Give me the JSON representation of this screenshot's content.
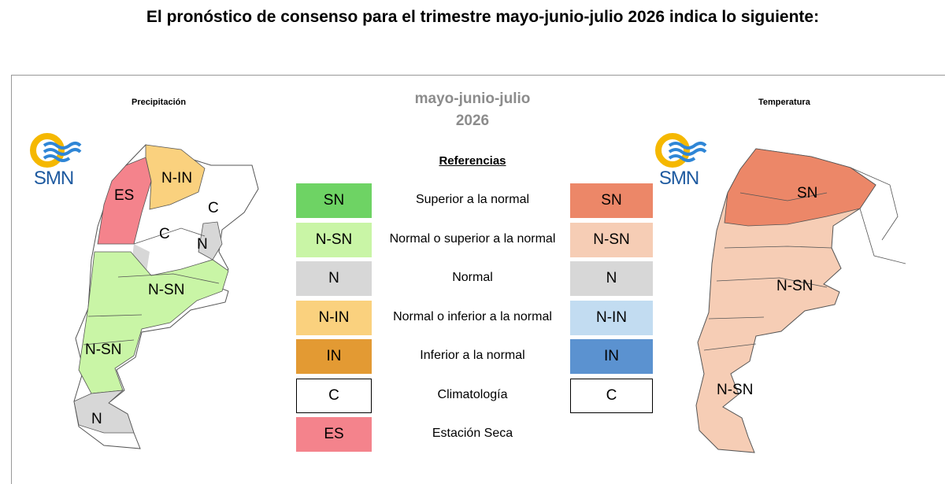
{
  "headline": "El pronóstico de consenso para el trimestre mayo-junio-julio 2026 indica lo siguiente:",
  "center_title": {
    "line1": "mayo-junio-julio",
    "line2": "2026"
  },
  "left_map": {
    "title": "Precipitación",
    "logo": "SMN",
    "labels": {
      "north": "N-IN",
      "dry": "ES",
      "clim_center": "C",
      "clim_ne": "C",
      "normal_ne": "N",
      "center_wet": "N-SN",
      "south_wet": "N-SN",
      "south_normal": "N"
    }
  },
  "right_map": {
    "title": "Temperatura",
    "logo": "SMN",
    "labels": {
      "north": "SN",
      "center": "N-SN",
      "south": "N-SN"
    }
  },
  "legend": {
    "heading": "Referencias",
    "rows": [
      {
        "desc": "Superior a la normal",
        "precip_code": "SN",
        "precip_color": "#6ed364",
        "temp_code": "SN",
        "temp_color": "#ec8768"
      },
      {
        "desc": "Normal o superior a la normal",
        "precip_code": "N-SN",
        "precip_color": "#c9f5a6",
        "temp_code": "N-SN",
        "temp_color": "#f6cdb5"
      },
      {
        "desc": "Normal",
        "precip_code": "N",
        "precip_color": "#d7d7d7",
        "temp_code": "N",
        "temp_color": "#d7d7d7"
      },
      {
        "desc": "Normal o inferior a la normal",
        "precip_code": "N-IN",
        "precip_color": "#fad17e",
        "temp_code": "N-IN",
        "temp_color": "#c2dcf1"
      },
      {
        "desc": "Inferior a la normal",
        "precip_code": "IN",
        "precip_color": "#e39a33",
        "temp_code": "IN",
        "temp_color": "#5b92d0"
      },
      {
        "desc": "Climatología",
        "precip_code": "C",
        "precip_color": "#ffffff",
        "temp_code": "C",
        "temp_color": "#ffffff"
      },
      {
        "desc": "Estación Seca",
        "precip_code": "ES",
        "precip_color": "#f4838c"
      }
    ]
  }
}
